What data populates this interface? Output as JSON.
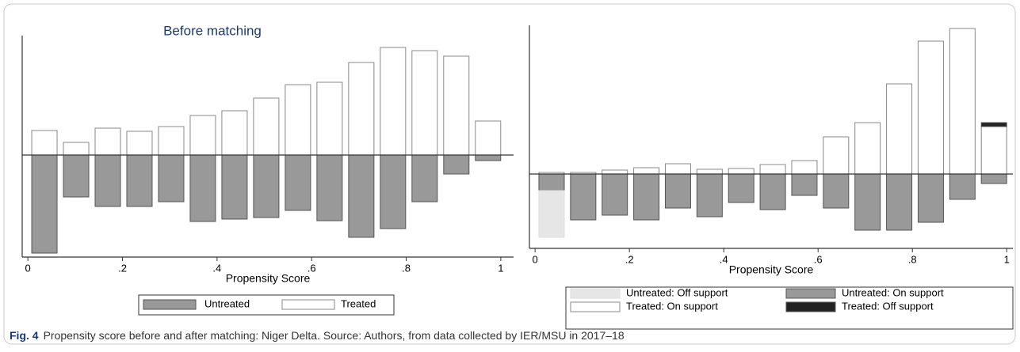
{
  "caption": {
    "label": "Fig. 4",
    "text": "Propensity score before and after matching: Niger Delta. Source: Authors, from data collected by IER/MSU in 2017–18"
  },
  "chart_data": [
    {
      "type": "bar",
      "title": "Before matching",
      "xlabel": "Propensity Score",
      "x": [
        0.035,
        0.102,
        0.169,
        0.236,
        0.303,
        0.37,
        0.437,
        0.504,
        0.571,
        0.638,
        0.705,
        0.772,
        0.839,
        0.906,
        0.973
      ],
      "series": [
        {
          "name": "Untreated",
          "color": "#999999",
          "values": [
            -124,
            -53,
            -65,
            -65,
            -59,
            -84,
            -81,
            -79,
            -70,
            -83,
            -104,
            -93,
            -59,
            -24,
            -7
          ]
        },
        {
          "name": "Treated",
          "color": "#ffffff",
          "values": [
            31,
            16,
            34,
            30,
            36,
            50,
            56,
            72,
            89,
            92,
            117,
            136,
            132,
            125,
            43
          ]
        }
      ],
      "xlim": [
        -0.012,
        1.027
      ],
      "ylim": [
        -129,
        151
      ],
      "xticks": [
        0,
        {
          "value": 0.2,
          "label": ".2"
        },
        {
          "value": 0.4,
          "label": ".4"
        },
        {
          "value": 0.6,
          "label": ".6"
        },
        {
          "value": 0.8,
          "label": ".8"
        },
        1
      ]
    },
    {
      "type": "bar",
      "xlabel": "Propensity Score",
      "x": [
        0.035,
        0.102,
        0.169,
        0.236,
        0.303,
        0.37,
        0.437,
        0.504,
        0.571,
        0.638,
        0.705,
        0.772,
        0.839,
        0.906,
        0.973
      ],
      "series": [
        {
          "name": "Untreated: Off support",
          "color": "#e6e6e6",
          "values": [
            -59,
            null,
            null,
            null,
            null,
            null,
            null,
            null,
            null,
            null,
            null,
            null,
            null,
            null,
            null
          ]
        },
        {
          "name": "Untreated: On support",
          "color": "#999999",
          "values": [
            -21,
            -58,
            -52,
            -58,
            -43,
            -54,
            -36,
            -45,
            -27,
            -43,
            -71,
            -71,
            -61,
            -32,
            -12
          ]
        },
        {
          "name": "Treated: On support",
          "color": "#ffffff",
          "values": [
            2,
            2,
            5,
            8,
            13,
            6,
            7,
            12,
            17,
            47,
            65,
            114,
            168,
            184,
            60
          ]
        },
        {
          "name": "Treated: Off support",
          "color": "#222222",
          "values": [
            null,
            null,
            null,
            null,
            null,
            null,
            null,
            null,
            null,
            null,
            null,
            null,
            null,
            null,
            5
          ]
        }
      ],
      "xlim": [
        -0.012,
        1.013
      ],
      "ylim": [
        -94,
        188
      ],
      "xticks": [
        0,
        {
          "value": 0.2,
          "label": ".2"
        },
        {
          "value": 0.4,
          "label": ".4"
        },
        {
          "value": 0.6,
          "label": ".6"
        },
        {
          "value": 0.8,
          "label": ".8"
        },
        1
      ]
    }
  ]
}
